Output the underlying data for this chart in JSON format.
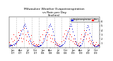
{
  "title": "Milwaukee Weather Evapotranspiration\nvs Rain per Day\n(Inches)",
  "legend_labels": [
    "Evapotranspiration",
    "Rain"
  ],
  "legend_colors": [
    "#0000ff",
    "#ff0000"
  ],
  "dot_color_et": "#0000cc",
  "dot_color_rain": "#ff0000",
  "background_color": "#ffffff",
  "grid_color": "#c0c0c0",
  "title_fontsize": 3.2,
  "tick_fontsize": 2.5,
  "ylim": [
    0.0,
    0.7
  ],
  "xlim": [
    0,
    1095
  ],
  "et_data": [
    [
      3,
      0.05
    ],
    [
      8,
      0.04
    ],
    [
      15,
      0.06
    ],
    [
      22,
      0.05
    ],
    [
      30,
      0.06
    ],
    [
      40,
      0.07
    ],
    [
      50,
      0.08
    ],
    [
      60,
      0.07
    ],
    [
      70,
      0.09
    ],
    [
      80,
      0.1
    ],
    [
      90,
      0.12
    ],
    [
      100,
      0.15
    ],
    [
      110,
      0.18
    ],
    [
      120,
      0.22
    ],
    [
      130,
      0.28
    ],
    [
      140,
      0.32
    ],
    [
      150,
      0.38
    ],
    [
      160,
      0.42
    ],
    [
      170,
      0.48
    ],
    [
      180,
      0.52
    ],
    [
      190,
      0.55
    ],
    [
      200,
      0.5
    ],
    [
      210,
      0.45
    ],
    [
      220,
      0.38
    ],
    [
      230,
      0.3
    ],
    [
      240,
      0.25
    ],
    [
      250,
      0.18
    ],
    [
      260,
      0.14
    ],
    [
      270,
      0.1
    ],
    [
      280,
      0.08
    ],
    [
      290,
      0.06
    ],
    [
      300,
      0.05
    ],
    [
      310,
      0.04
    ],
    [
      320,
      0.04
    ],
    [
      330,
      0.03
    ],
    [
      340,
      0.03
    ],
    [
      350,
      0.03
    ],
    [
      360,
      0.03
    ],
    [
      368,
      0.04
    ],
    [
      375,
      0.05
    ],
    [
      382,
      0.06
    ],
    [
      390,
      0.07
    ],
    [
      400,
      0.09
    ],
    [
      410,
      0.12
    ],
    [
      420,
      0.16
    ],
    [
      430,
      0.2
    ],
    [
      440,
      0.25
    ],
    [
      450,
      0.3
    ],
    [
      460,
      0.35
    ],
    [
      470,
      0.42
    ],
    [
      480,
      0.48
    ],
    [
      490,
      0.52
    ],
    [
      500,
      0.55
    ],
    [
      510,
      0.5
    ],
    [
      520,
      0.43
    ],
    [
      530,
      0.36
    ],
    [
      540,
      0.28
    ],
    [
      550,
      0.2
    ],
    [
      560,
      0.14
    ],
    [
      570,
      0.1
    ],
    [
      580,
      0.07
    ],
    [
      590,
      0.05
    ],
    [
      600,
      0.04
    ],
    [
      610,
      0.03
    ],
    [
      620,
      0.03
    ],
    [
      630,
      0.04
    ],
    [
      638,
      0.05
    ],
    [
      645,
      0.06
    ],
    [
      655,
      0.08
    ],
    [
      665,
      0.11
    ],
    [
      675,
      0.15
    ],
    [
      685,
      0.2
    ],
    [
      695,
      0.25
    ],
    [
      705,
      0.32
    ],
    [
      715,
      0.38
    ],
    [
      725,
      0.44
    ],
    [
      735,
      0.5
    ],
    [
      745,
      0.54
    ],
    [
      755,
      0.5
    ],
    [
      765,
      0.43
    ],
    [
      775,
      0.36
    ],
    [
      785,
      0.28
    ],
    [
      795,
      0.2
    ],
    [
      805,
      0.14
    ],
    [
      815,
      0.09
    ],
    [
      825,
      0.06
    ],
    [
      835,
      0.04
    ],
    [
      845,
      0.03
    ],
    [
      855,
      0.04
    ],
    [
      862,
      0.05
    ],
    [
      870,
      0.07
    ],
    [
      880,
      0.1
    ],
    [
      890,
      0.14
    ],
    [
      900,
      0.19
    ],
    [
      910,
      0.25
    ],
    [
      920,
      0.32
    ],
    [
      930,
      0.4
    ],
    [
      940,
      0.46
    ],
    [
      950,
      0.52
    ],
    [
      960,
      0.48
    ],
    [
      970,
      0.41
    ],
    [
      980,
      0.33
    ],
    [
      990,
      0.25
    ],
    [
      1000,
      0.17
    ],
    [
      1010,
      0.11
    ],
    [
      1020,
      0.07
    ],
    [
      1030,
      0.05
    ],
    [
      1040,
      0.03
    ],
    [
      1050,
      0.03
    ],
    [
      1060,
      0.03
    ],
    [
      1070,
      0.04
    ],
    [
      1080,
      0.05
    ],
    [
      1090,
      0.06
    ]
  ],
  "rain_data": [
    [
      5,
      0.12
    ],
    [
      12,
      0.08
    ],
    [
      25,
      0.2
    ],
    [
      35,
      0.05
    ],
    [
      45,
      0.15
    ],
    [
      55,
      0.3
    ],
    [
      65,
      0.18
    ],
    [
      75,
      0.25
    ],
    [
      85,
      0.1
    ],
    [
      95,
      0.22
    ],
    [
      105,
      0.18
    ],
    [
      115,
      0.35
    ],
    [
      125,
      0.28
    ],
    [
      135,
      0.4
    ],
    [
      145,
      0.22
    ],
    [
      155,
      0.15
    ],
    [
      165,
      0.32
    ],
    [
      175,
      0.2
    ],
    [
      185,
      0.45
    ],
    [
      195,
      0.3
    ],
    [
      205,
      0.18
    ],
    [
      215,
      0.25
    ],
    [
      225,
      0.35
    ],
    [
      235,
      0.15
    ],
    [
      245,
      0.1
    ],
    [
      255,
      0.2
    ],
    [
      265,
      0.28
    ],
    [
      275,
      0.12
    ],
    [
      285,
      0.08
    ],
    [
      295,
      0.15
    ],
    [
      305,
      0.1
    ],
    [
      315,
      0.05
    ],
    [
      325,
      0.08
    ],
    [
      335,
      0.06
    ],
    [
      345,
      0.04
    ],
    [
      355,
      0.08
    ],
    [
      372,
      0.18
    ],
    [
      380,
      0.25
    ],
    [
      392,
      0.12
    ],
    [
      405,
      0.3
    ],
    [
      415,
      0.2
    ],
    [
      425,
      0.4
    ],
    [
      435,
      0.28
    ],
    [
      445,
      0.35
    ],
    [
      455,
      0.18
    ],
    [
      465,
      0.25
    ],
    [
      475,
      0.42
    ],
    [
      485,
      0.3
    ],
    [
      495,
      0.22
    ],
    [
      505,
      0.15
    ],
    [
      515,
      0.28
    ],
    [
      525,
      0.2
    ],
    [
      535,
      0.12
    ],
    [
      545,
      0.18
    ],
    [
      555,
      0.08
    ],
    [
      565,
      0.12
    ],
    [
      575,
      0.06
    ],
    [
      585,
      0.1
    ],
    [
      595,
      0.05
    ],
    [
      605,
      0.08
    ],
    [
      635,
      0.15
    ],
    [
      648,
      0.25
    ],
    [
      658,
      0.18
    ],
    [
      668,
      0.32
    ],
    [
      678,
      0.22
    ],
    [
      688,
      0.4
    ],
    [
      698,
      0.28
    ],
    [
      708,
      0.35
    ],
    [
      718,
      0.2
    ],
    [
      728,
      0.45
    ],
    [
      738,
      0.3
    ],
    [
      748,
      0.18
    ],
    [
      758,
      0.25
    ],
    [
      768,
      0.15
    ],
    [
      778,
      0.2
    ],
    [
      788,
      0.1
    ],
    [
      798,
      0.15
    ],
    [
      808,
      0.08
    ],
    [
      818,
      0.12
    ],
    [
      828,
      0.06
    ],
    [
      838,
      0.1
    ],
    [
      848,
      0.05
    ],
    [
      858,
      0.12
    ],
    [
      868,
      0.2
    ],
    [
      878,
      0.3
    ],
    [
      888,
      0.18
    ],
    [
      898,
      0.25
    ],
    [
      908,
      0.4
    ],
    [
      918,
      0.28
    ],
    [
      928,
      0.35
    ],
    [
      938,
      0.2
    ],
    [
      948,
      0.3
    ],
    [
      958,
      0.15
    ],
    [
      968,
      0.22
    ],
    [
      978,
      0.18
    ],
    [
      988,
      0.1
    ],
    [
      998,
      0.15
    ],
    [
      1008,
      0.08
    ],
    [
      1018,
      0.12
    ],
    [
      1028,
      0.06
    ],
    [
      1038,
      0.05
    ],
    [
      1048,
      0.08
    ],
    [
      1058,
      0.12
    ],
    [
      1068,
      0.06
    ],
    [
      1078,
      0.08
    ],
    [
      1088,
      0.05
    ]
  ],
  "vlines": [
    365,
    730,
    1095
  ],
  "vlines_minor": [
    91,
    182,
    274,
    456,
    547,
    639,
    821,
    912,
    1004
  ],
  "xtick_positions": [
    46,
    137,
    228,
    319,
    411,
    502,
    593,
    684,
    775,
    867,
    958,
    1049
  ],
  "xtick_labels": [
    "Jan\n'07",
    "Apr\n'07",
    "Jul\n'07",
    "Oct\n'07",
    "Jan\n'08",
    "Apr\n'08",
    "Jul\n'08",
    "Oct\n'08",
    "Jan\n'09",
    "Apr\n'09",
    "Jul\n'09",
    "Oct\n'09"
  ],
  "ytick_positions": [
    0.1,
    0.2,
    0.3,
    0.4,
    0.5,
    0.6
  ],
  "ytick_labels": [
    ".1",
    ".2",
    ".3",
    ".4",
    ".5",
    ".6"
  ]
}
